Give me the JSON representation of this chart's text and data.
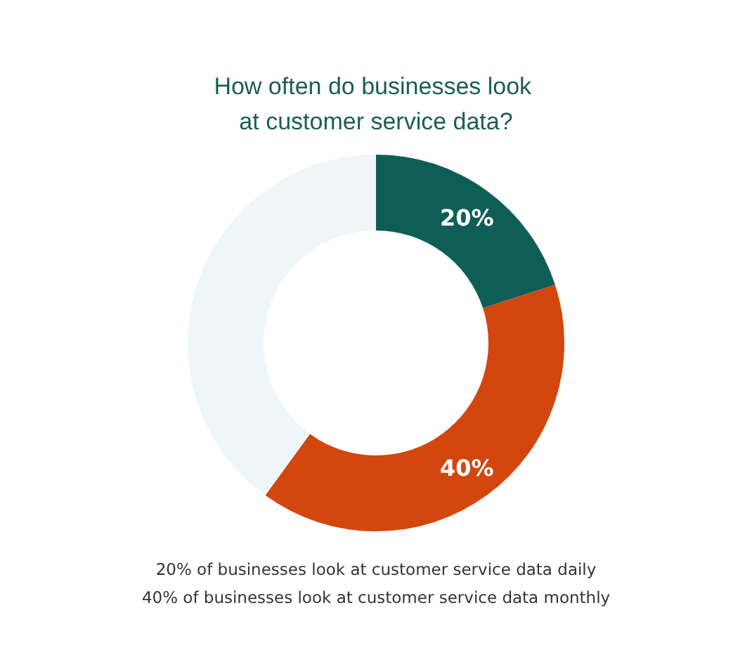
{
  "chart_data": {
    "type": "donut",
    "title": "How often do businesses look at customer service data?",
    "categories": [
      null,
      null,
      null
    ],
    "values": [
      20,
      40,
      40
    ],
    "colors": [
      "#0e5e57",
      "#d3460e",
      "#eef6f8"
    ],
    "value_labels": [
      "20%",
      "40%",
      null
    ],
    "annotations": [
      "20% of businesses look at customer service data daily",
      "40% of businesses look at customer service data monthly"
    ]
  }
}
